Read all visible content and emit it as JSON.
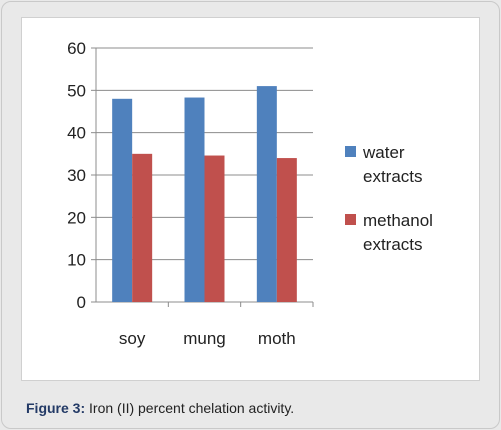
{
  "caption": {
    "label": "Figure 3:",
    "text": " Iron (II) percent chelation activity."
  },
  "chart_data": {
    "type": "bar",
    "categories": [
      "soy",
      "mung",
      "moth"
    ],
    "series": [
      {
        "name": "water extracts",
        "name_lines": [
          "water",
          "extracts"
        ],
        "values": [
          48,
          48.3,
          51
        ],
        "color": "#4f81bd"
      },
      {
        "name": "methanol extracts",
        "name_lines": [
          "methanol",
          "extracts"
        ],
        "values": [
          35,
          34.6,
          34
        ],
        "color": "#c0504d"
      }
    ],
    "yticks": [
      "0",
      "10",
      "20",
      "30",
      "40",
      "50",
      "60"
    ],
    "ylim": [
      0,
      60
    ],
    "title": "",
    "xlabel": "",
    "ylabel": "",
    "grid": true,
    "legend": "right"
  }
}
